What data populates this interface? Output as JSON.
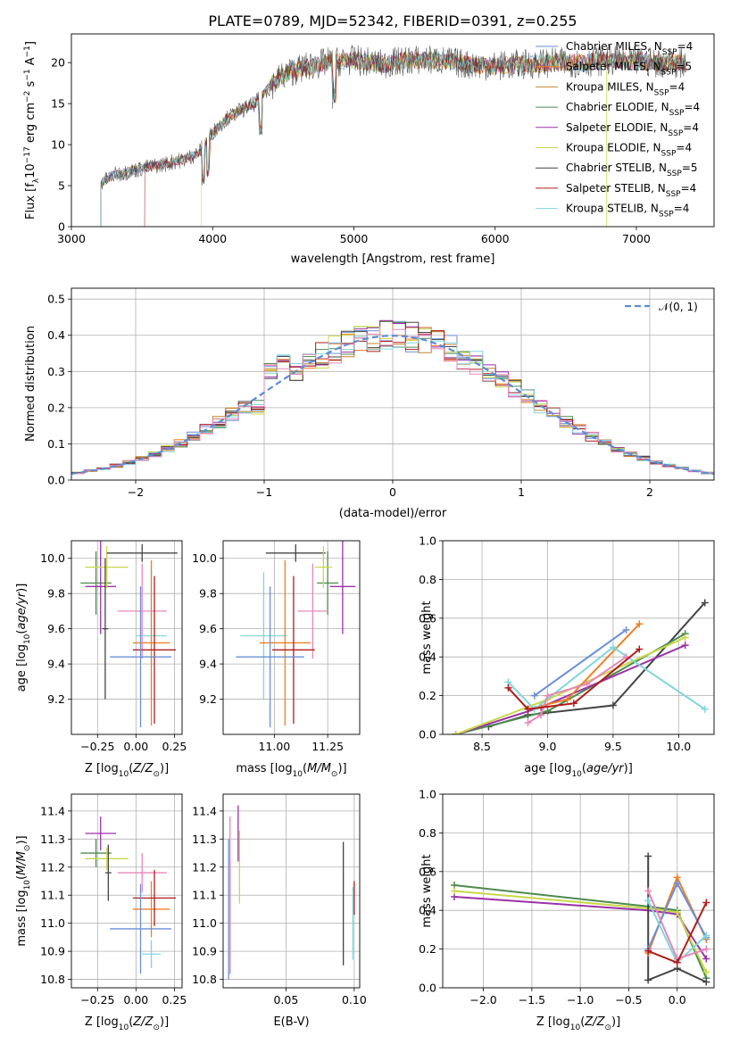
{
  "title": "PLATE=0789, MJD=52342, FIBERID=0391, z=0.255",
  "colors": {
    "chabrier_miles": "#6a8fd6",
    "salpeter_miles": "#f07f24",
    "kroupa_miles": "#c4842a",
    "chabrier_elodie": "#4e8a4e",
    "salpeter_elodie": "#9b30a8",
    "kroupa_elodie": "#c8d84a",
    "chabrier_stelib": "#444444",
    "salpeter_stelib": "#b01c1c",
    "kroupa_stelib": "#7fd6dc",
    "pink": "#e787b8",
    "gaussian": "#5b8ed6",
    "grid": "#b0b0b0"
  },
  "legend_spectrum": [
    {
      "base": "Chabrier MILES, N",
      "sub": "SSP",
      "post": "=4"
    },
    {
      "base": "Salpeter MILES, N",
      "sub": "SSP",
      "post": "=5"
    },
    {
      "base": "Kroupa MILES, N",
      "sub": "SSP",
      "post": "=4"
    },
    {
      "base": "Chabrier ELODIE, N",
      "sub": "SSP",
      "post": "=4"
    },
    {
      "base": "Salpeter ELODIE, N",
      "sub": "SSP",
      "post": "=4"
    },
    {
      "base": "Kroupa ELODIE, N",
      "sub": "SSP",
      "post": "=4"
    },
    {
      "base": "Chabrier STELIB, N",
      "sub": "SSP",
      "post": "=5"
    },
    {
      "base": "Salpeter STELIB, N",
      "sub": "SSP",
      "post": "=4"
    },
    {
      "base": "Kroupa STELIB, N",
      "sub": "SSP",
      "post": "=4"
    }
  ],
  "legend_hist": "𝒩(0, 1)",
  "chart_data": [
    {
      "id": "spectrum",
      "type": "line",
      "xlabel": "wavelength [Angstrom, rest frame]",
      "ylabel": "Flux [f",
      "ylabel_parts": [
        "Flux [f",
        "λ",
        "10",
        "−17",
        " erg cm",
        "−2",
        " s",
        "−1",
        " A",
        "−1",
        "]"
      ],
      "xlim": [
        3000,
        7550
      ],
      "ylim": [
        0,
        23.5
      ],
      "xticks": [
        "3000",
        "4000",
        "5000",
        "6000",
        "7000"
      ],
      "yticks": [
        "0",
        "5",
        "10",
        "15",
        "20"
      ],
      "continuum": [
        [
          3200,
          5.2
        ],
        [
          3300,
          6.3
        ],
        [
          3500,
          7.1
        ],
        [
          3650,
          7.6
        ],
        [
          3800,
          8.2
        ],
        [
          3900,
          9.0
        ],
        [
          4000,
          11.5
        ],
        [
          4100,
          13.2
        ],
        [
          4200,
          14.2
        ],
        [
          4300,
          15.0
        ],
        [
          4400,
          17.0
        ],
        [
          4500,
          18.5
        ],
        [
          4600,
          19.2
        ],
        [
          4800,
          20.0
        ],
        [
          5000,
          20.3
        ],
        [
          5200,
          19.8
        ],
        [
          5400,
          20.3
        ],
        [
          5600,
          20.3
        ],
        [
          5800,
          19.8
        ],
        [
          6000,
          19.6
        ],
        [
          6200,
          19.8
        ],
        [
          6400,
          20.0
        ],
        [
          6600,
          20.0
        ],
        [
          6800,
          20.3
        ],
        [
          7000,
          20.1
        ],
        [
          7200,
          20.0
        ],
        [
          7350,
          19.9
        ]
      ]
    },
    {
      "id": "residual-hist",
      "type": "histogram",
      "xlabel": "(data-model)/error",
      "ylabel": "Normed distribution",
      "xlim": [
        -2.5,
        2.5
      ],
      "ylim": [
        0,
        0.53
      ],
      "xticks": [
        "−2",
        "−1",
        "0",
        "1",
        "2"
      ],
      "yticks": [
        "0.0",
        "0.1",
        "0.2",
        "0.3",
        "0.4",
        "0.5"
      ],
      "bin_width": 0.1,
      "gaussian": {
        "mean": 0,
        "sigma": 1
      }
    },
    {
      "id": "age-vs-Z",
      "type": "scatter",
      "xlabel": "Z [log",
      "ylabel": "age  [log",
      "xlim": [
        -0.42,
        0.3
      ],
      "ylim": [
        9.0,
        10.1
      ],
      "xticks": [
        "−0.25",
        "0.00",
        "0.25"
      ],
      "yticks": [
        "9.2",
        "9.4",
        "9.6",
        "9.8",
        "10.0"
      ],
      "points": [
        {
          "x": -0.26,
          "y": 9.86,
          "xerr": 0.1,
          "yerr": 0.18,
          "c": "chabrier_elodie"
        },
        {
          "x": -0.23,
          "y": 9.84,
          "xerr": 0.1,
          "yerr": 0.27,
          "c": "salpeter_elodie"
        },
        {
          "x": -0.19,
          "y": 9.95,
          "xerr": 0.14,
          "yerr": 0.12,
          "c": "kroupa_elodie"
        },
        {
          "x": 0.04,
          "y": 10.03,
          "xerr": 0.23,
          "yerr": 0.05,
          "c": "chabrier_stelib"
        },
        {
          "x": -0.2,
          "y": 9.6,
          "xerr": 0.02,
          "yerr": 0.4,
          "c": "chabrier_stelib"
        },
        {
          "x": 0.04,
          "y": 9.7,
          "xerr": 0.16,
          "yerr": 0.27,
          "c": "pink"
        },
        {
          "x": 0.1,
          "y": 9.56,
          "xerr": 0.1,
          "yerr": 0.38,
          "c": "kroupa_stelib"
        },
        {
          "x": 0.1,
          "y": 9.52,
          "xerr": 0.12,
          "yerr": 0.47,
          "c": "salpeter_miles"
        },
        {
          "x": 0.12,
          "y": 9.48,
          "xerr": 0.14,
          "yerr": 0.42,
          "c": "salpeter_stelib"
        },
        {
          "x": 0.03,
          "y": 9.44,
          "xerr": 0.2,
          "yerr": 0.4,
          "c": "chabrier_miles"
        }
      ]
    },
    {
      "id": "age-vs-mass",
      "type": "scatter",
      "xlabel": "mass [log",
      "ylabel": "",
      "xlim": [
        10.76,
        11.4
      ],
      "ylim": [
        9.0,
        10.1
      ],
      "xticks": [
        "11.00",
        "11.25"
      ],
      "yticks": [
        "9.2",
        "9.4",
        "9.6",
        "9.8",
        "10.0"
      ],
      "points": [
        {
          "x": 11.1,
          "y": 10.03,
          "xerr": 0.14,
          "yerr": 0.05,
          "c": "chabrier_stelib"
        },
        {
          "x": 11.25,
          "y": 9.86,
          "xerr": 0.05,
          "yerr": 0.18,
          "c": "chabrier_elodie"
        },
        {
          "x": 11.32,
          "y": 9.84,
          "xerr": 0.06,
          "yerr": 0.27,
          "c": "salpeter_elodie"
        },
        {
          "x": 11.23,
          "y": 9.95,
          "xerr": 0.04,
          "yerr": 0.12,
          "c": "kroupa_elodie"
        },
        {
          "x": 11.18,
          "y": 9.7,
          "xerr": 0.07,
          "yerr": 0.27,
          "c": "pink"
        },
        {
          "x": 10.95,
          "y": 9.56,
          "xerr": 0.11,
          "yerr": 0.36,
          "c": "kroupa_stelib"
        },
        {
          "x": 11.05,
          "y": 9.52,
          "xerr": 0.12,
          "yerr": 0.47,
          "c": "salpeter_miles"
        },
        {
          "x": 11.09,
          "y": 9.48,
          "xerr": 0.1,
          "yerr": 0.42,
          "c": "salpeter_stelib"
        },
        {
          "x": 10.98,
          "y": 9.44,
          "xerr": 0.16,
          "yerr": 0.4,
          "c": "chabrier_miles"
        }
      ]
    },
    {
      "id": "weight-vs-age",
      "type": "line",
      "xlabel": "age  [log",
      "ylabel": "mass weight",
      "xlim": [
        8.2,
        10.27
      ],
      "ylim": [
        0,
        1
      ],
      "xticks": [
        "8.5",
        "9.0",
        "9.5",
        "10.0"
      ],
      "yticks": [
        "0.0",
        "0.2",
        "0.4",
        "0.6",
        "0.8",
        "1.0"
      ],
      "series": [
        {
          "c": "chabrier_stelib",
          "pts": [
            [
              8.55,
              0.04
            ],
            [
              8.85,
              0.1
            ],
            [
              9.5,
              0.15
            ],
            [
              10.2,
              0.68
            ]
          ]
        },
        {
          "c": "chabrier_elodie",
          "pts": [
            [
              8.3,
              0.0
            ],
            [
              9.0,
              0.12
            ],
            [
              10.05,
              0.52
            ]
          ]
        },
        {
          "c": "salpeter_elodie",
          "pts": [
            [
              8.3,
              0.0
            ],
            [
              8.95,
              0.14
            ],
            [
              10.05,
              0.46
            ]
          ]
        },
        {
          "c": "kroupa_elodie",
          "pts": [
            [
              8.3,
              0.0
            ],
            [
              9.0,
              0.18
            ],
            [
              10.05,
              0.5
            ]
          ]
        },
        {
          "c": "chabrier_miles",
          "pts": [
            [
              8.9,
              0.2
            ],
            [
              9.6,
              0.54
            ]
          ]
        },
        {
          "c": "salpeter_miles",
          "pts": [
            [
              8.85,
              0.13
            ],
            [
              9.15,
              0.18
            ],
            [
              9.7,
              0.57
            ]
          ]
        },
        {
          "c": "kroupa_stelib",
          "pts": [
            [
              8.7,
              0.27
            ],
            [
              8.9,
              0.13
            ],
            [
              9.5,
              0.45
            ],
            [
              10.2,
              0.13
            ]
          ]
        },
        {
          "c": "pink",
          "pts": [
            [
              8.85,
              0.06
            ],
            [
              8.95,
              0.1
            ],
            [
              9.0,
              0.2
            ],
            [
              9.3,
              0.26
            ],
            [
              9.6,
              0.4
            ]
          ]
        },
        {
          "c": "salpeter_stelib",
          "pts": [
            [
              8.7,
              0.24
            ],
            [
              8.85,
              0.13
            ],
            [
              9.2,
              0.16
            ],
            [
              9.7,
              0.44
            ]
          ]
        }
      ]
    },
    {
      "id": "mass-vs-Z",
      "type": "scatter",
      "xlabel": "Z [log",
      "ylabel": "mass [log",
      "xlim": [
        -0.42,
        0.3
      ],
      "ylim": [
        10.77,
        11.46
      ],
      "xticks": [
        "−0.25",
        "0.00",
        "0.25"
      ],
      "yticks": [
        "10.8",
        "10.9",
        "11.0",
        "11.1",
        "11.2",
        "11.3",
        "11.4"
      ],
      "points": [
        {
          "x": -0.26,
          "y": 11.25,
          "xerr": 0.1,
          "yerr": 0.05,
          "c": "chabrier_elodie"
        },
        {
          "x": -0.23,
          "y": 11.32,
          "xerr": 0.1,
          "yerr": 0.06,
          "c": "salpeter_elodie"
        },
        {
          "x": -0.19,
          "y": 11.23,
          "xerr": 0.14,
          "yerr": 0.04,
          "c": "kroupa_elodie"
        },
        {
          "x": -0.18,
          "y": 11.18,
          "xerr": 0.02,
          "yerr": 0.1,
          "c": "chabrier_stelib"
        },
        {
          "x": 0.04,
          "y": 11.18,
          "xerr": 0.16,
          "yerr": 0.07,
          "c": "pink"
        },
        {
          "x": 0.1,
          "y": 10.89,
          "xerr": 0.06,
          "yerr": 0.05,
          "c": "kroupa_stelib"
        },
        {
          "x": 0.1,
          "y": 11.05,
          "xerr": 0.12,
          "yerr": 0.1,
          "c": "salpeter_miles"
        },
        {
          "x": 0.12,
          "y": 11.09,
          "xerr": 0.14,
          "yerr": 0.1,
          "c": "salpeter_stelib"
        },
        {
          "x": 0.03,
          "y": 10.98,
          "xerr": 0.2,
          "yerr": 0.16,
          "c": "chabrier_miles"
        }
      ]
    },
    {
      "id": "mass-vs-EBV",
      "type": "scatter",
      "xlabel": "E(B-V)",
      "ylabel": "",
      "xlim": [
        0.004,
        0.104
      ],
      "ylim": [
        10.77,
        11.46
      ],
      "xticks": [
        "0.05",
        "0.10"
      ],
      "yticks": [
        "10.8",
        "10.9",
        "11.0",
        "11.1",
        "11.2",
        "11.3",
        "11.4"
      ],
      "points": [
        {
          "x": 0.008,
          "y": 11.05,
          "xerr": 0,
          "yerr": 0.25,
          "c": "chabrier_miles"
        },
        {
          "x": 0.009,
          "y": 11.02,
          "xerr": 0,
          "yerr": 0.2,
          "c": "salpeter_miles"
        },
        {
          "x": 0.009,
          "y": 11.1,
          "xerr": 0,
          "yerr": 0.28,
          "c": "pink"
        },
        {
          "x": 0.015,
          "y": 11.32,
          "xerr": 0,
          "yerr": 0.1,
          "c": "salpeter_elodie"
        },
        {
          "x": 0.016,
          "y": 11.2,
          "xerr": 0,
          "yerr": 0.13,
          "c": "kroupa_elodie"
        },
        {
          "x": 0.092,
          "y": 11.07,
          "xerr": 0,
          "yerr": 0.22,
          "c": "chabrier_stelib"
        },
        {
          "x": 0.1,
          "y": 11.09,
          "xerr": 0,
          "yerr": 0.06,
          "c": "salpeter_stelib"
        },
        {
          "x": 0.099,
          "y": 11.0,
          "xerr": 0,
          "yerr": 0.13,
          "c": "kroupa_stelib"
        }
      ]
    },
    {
      "id": "weight-vs-Z",
      "type": "line",
      "xlabel": "Z [log",
      "ylabel": "mass weight",
      "xlim": [
        -2.42,
        0.38
      ],
      "ylim": [
        0,
        1
      ],
      "xticks": [
        "−2.0",
        "−1.5",
        "−1.0",
        "−0.5",
        "0.0"
      ],
      "yticks": [
        "0.0",
        "0.2",
        "0.4",
        "0.6",
        "0.8",
        "1.0"
      ],
      "series": [
        {
          "c": "chabrier_elodie",
          "pts": [
            [
              -2.3,
              0.53
            ],
            [
              -0.3,
              0.42
            ],
            [
              0.0,
              0.4
            ],
            [
              0.3,
              0.05
            ]
          ]
        },
        {
          "c": "salpeter_elodie",
          "pts": [
            [
              -2.3,
              0.47
            ],
            [
              -0.3,
              0.4
            ],
            [
              0.0,
              0.38
            ],
            [
              0.3,
              0.15
            ]
          ]
        },
        {
          "c": "kroupa_elodie",
          "pts": [
            [
              -2.3,
              0.5
            ],
            [
              -0.3,
              0.41
            ],
            [
              0.0,
              0.39
            ],
            [
              0.3,
              0.08
            ]
          ]
        },
        {
          "c": "chabrier_stelib",
          "pts": [
            [
              -0.3,
              0.68
            ],
            [
              -0.3,
              0.04
            ],
            [
              0.0,
              0.1
            ],
            [
              0.3,
              0.03
            ]
          ]
        },
        {
          "c": "salpeter_miles",
          "pts": [
            [
              -0.3,
              0.18
            ],
            [
              0.0,
              0.57
            ],
            [
              0.3,
              0.25
            ]
          ]
        },
        {
          "c": "chabrier_miles",
          "pts": [
            [
              -0.3,
              0.2
            ],
            [
              0.0,
              0.54
            ],
            [
              0.3,
              0.26
            ]
          ]
        },
        {
          "c": "kroupa_stelib",
          "pts": [
            [
              -0.3,
              0.45
            ],
            [
              0.0,
              0.13
            ],
            [
              0.3,
              0.27
            ]
          ]
        },
        {
          "c": "pink",
          "pts": [
            [
              -0.3,
              0.5
            ],
            [
              0.0,
              0.15
            ],
            [
              0.3,
              0.2
            ]
          ]
        },
        {
          "c": "salpeter_stelib",
          "pts": [
            [
              -0.3,
              0.19
            ],
            [
              0.0,
              0.13
            ],
            [
              0.3,
              0.44
            ]
          ]
        }
      ]
    }
  ]
}
